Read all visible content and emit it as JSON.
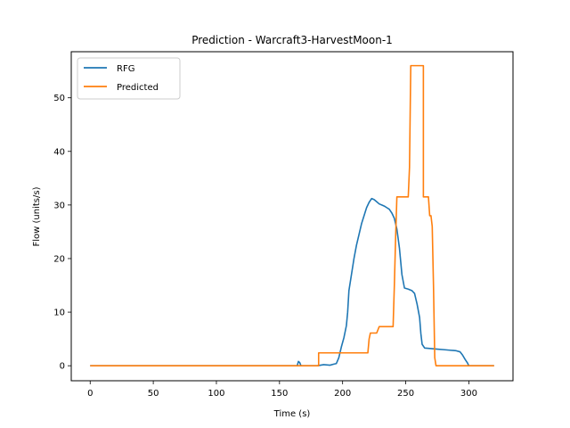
{
  "chart_data": {
    "type": "line",
    "title": "Prediction - Warcraft3-HarvestMoon-1",
    "xlabel": "Time (s)",
    "ylabel": "Flow (units/s)",
    "xlim": [
      -15,
      335
    ],
    "ylim": [
      -2.8,
      58.6
    ],
    "xticks": [
      0,
      50,
      100,
      150,
      200,
      250,
      300
    ],
    "yticks": [
      0,
      10,
      20,
      30,
      40,
      50
    ],
    "grid": false,
    "legend_position": "upper-left",
    "series": [
      {
        "name": "RFG",
        "color": "#1f77b4",
        "points": [
          [
            0,
            0
          ],
          [
            164,
            0
          ],
          [
            165,
            0.8
          ],
          [
            166,
            0.6
          ],
          [
            167,
            0
          ],
          [
            180,
            0
          ],
          [
            185,
            0.2
          ],
          [
            190,
            0.1
          ],
          [
            193,
            0.3
          ],
          [
            195,
            0.4
          ],
          [
            197,
            1.5
          ],
          [
            199,
            3.5
          ],
          [
            201,
            5.2
          ],
          [
            203,
            7.5
          ],
          [
            204,
            10
          ],
          [
            205,
            14
          ],
          [
            207,
            17
          ],
          [
            209,
            20
          ],
          [
            211,
            22.5
          ],
          [
            213,
            24.5
          ],
          [
            215,
            26.5
          ],
          [
            217,
            28
          ],
          [
            219,
            29.5
          ],
          [
            221,
            30.5
          ],
          [
            223,
            31.2
          ],
          [
            225,
            31.0
          ],
          [
            227,
            30.6
          ],
          [
            229,
            30.2
          ],
          [
            231,
            30.0
          ],
          [
            233,
            29.8
          ],
          [
            235,
            29.5
          ],
          [
            237,
            29.2
          ],
          [
            239,
            28.5
          ],
          [
            241,
            27.5
          ],
          [
            243,
            25.5
          ],
          [
            245,
            22
          ],
          [
            247,
            17
          ],
          [
            249,
            14.5
          ],
          [
            252,
            14.3
          ],
          [
            255,
            14.0
          ],
          [
            257,
            13.5
          ],
          [
            259,
            11.5
          ],
          [
            261,
            9
          ],
          [
            262,
            6
          ],
          [
            263,
            4
          ],
          [
            265,
            3.3
          ],
          [
            270,
            3.2
          ],
          [
            275,
            3.1
          ],
          [
            280,
            3.0
          ],
          [
            285,
            2.9
          ],
          [
            290,
            2.8
          ],
          [
            293,
            2.6
          ],
          [
            295,
            2.0
          ],
          [
            297,
            1.2
          ],
          [
            299,
            0.5
          ],
          [
            300,
            0
          ],
          [
            320,
            0
          ]
        ]
      },
      {
        "name": "Predicted",
        "color": "#ff7f0e",
        "points": [
          [
            0,
            0
          ],
          [
            181,
            0
          ],
          [
            181,
            2.4
          ],
          [
            220,
            2.4
          ],
          [
            221,
            5
          ],
          [
            222,
            6.1
          ],
          [
            227,
            6.1
          ],
          [
            229,
            7.3
          ],
          [
            240,
            7.3
          ],
          [
            241,
            15
          ],
          [
            242,
            24
          ],
          [
            243,
            31.5
          ],
          [
            252,
            31.5
          ],
          [
            253,
            37
          ],
          [
            254,
            56
          ],
          [
            264,
            56
          ],
          [
            264,
            31.5
          ],
          [
            268,
            31.5
          ],
          [
            269,
            28
          ],
          [
            270,
            28
          ],
          [
            271,
            26
          ],
          [
            272,
            15
          ],
          [
            273,
            1.5
          ],
          [
            274,
            0
          ],
          [
            320,
            0
          ]
        ]
      }
    ]
  }
}
